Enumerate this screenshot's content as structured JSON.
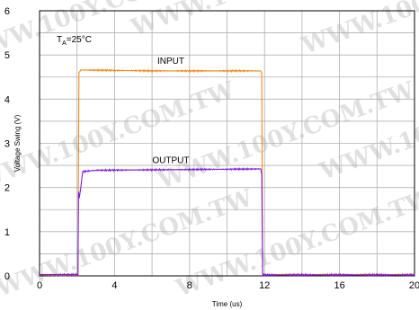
{
  "watermark_text": "WWW.100Y.COM.TW",
  "chart_data": {
    "type": "line",
    "xlabel": "Time (us)",
    "ylabel": "Voltage Swing (V)",
    "xlim": [
      0,
      20
    ],
    "ylim": [
      0,
      6
    ],
    "x_ticks": [
      "0",
      "4",
      "8",
      "12",
      "16",
      "20"
    ],
    "y_ticks": [
      "0",
      "1",
      "2",
      "3",
      "4",
      "5",
      "6"
    ],
    "grid": true,
    "condition_label": "T",
    "condition_sub": "A",
    "condition_value": "=25°C",
    "series": [
      {
        "name": "INPUT",
        "color": "#f08a1c",
        "x": [
          0,
          2.05,
          2.1,
          2.2,
          6,
          11.8,
          11.85,
          11.9,
          20
        ],
        "values": [
          0.02,
          0.02,
          4.6,
          4.66,
          4.64,
          4.64,
          4.6,
          0.03,
          0.03
        ]
      },
      {
        "name": "OUTPUT",
        "color": "#7b1fe0",
        "x": [
          0,
          2.05,
          2.08,
          2.12,
          2.2,
          2.3,
          3,
          6,
          11.8,
          11.85,
          11.9,
          20
        ],
        "values": [
          0.03,
          0.03,
          1.9,
          1.76,
          2.0,
          2.36,
          2.39,
          2.4,
          2.42,
          2.3,
          0.02,
          0.02
        ]
      }
    ]
  }
}
